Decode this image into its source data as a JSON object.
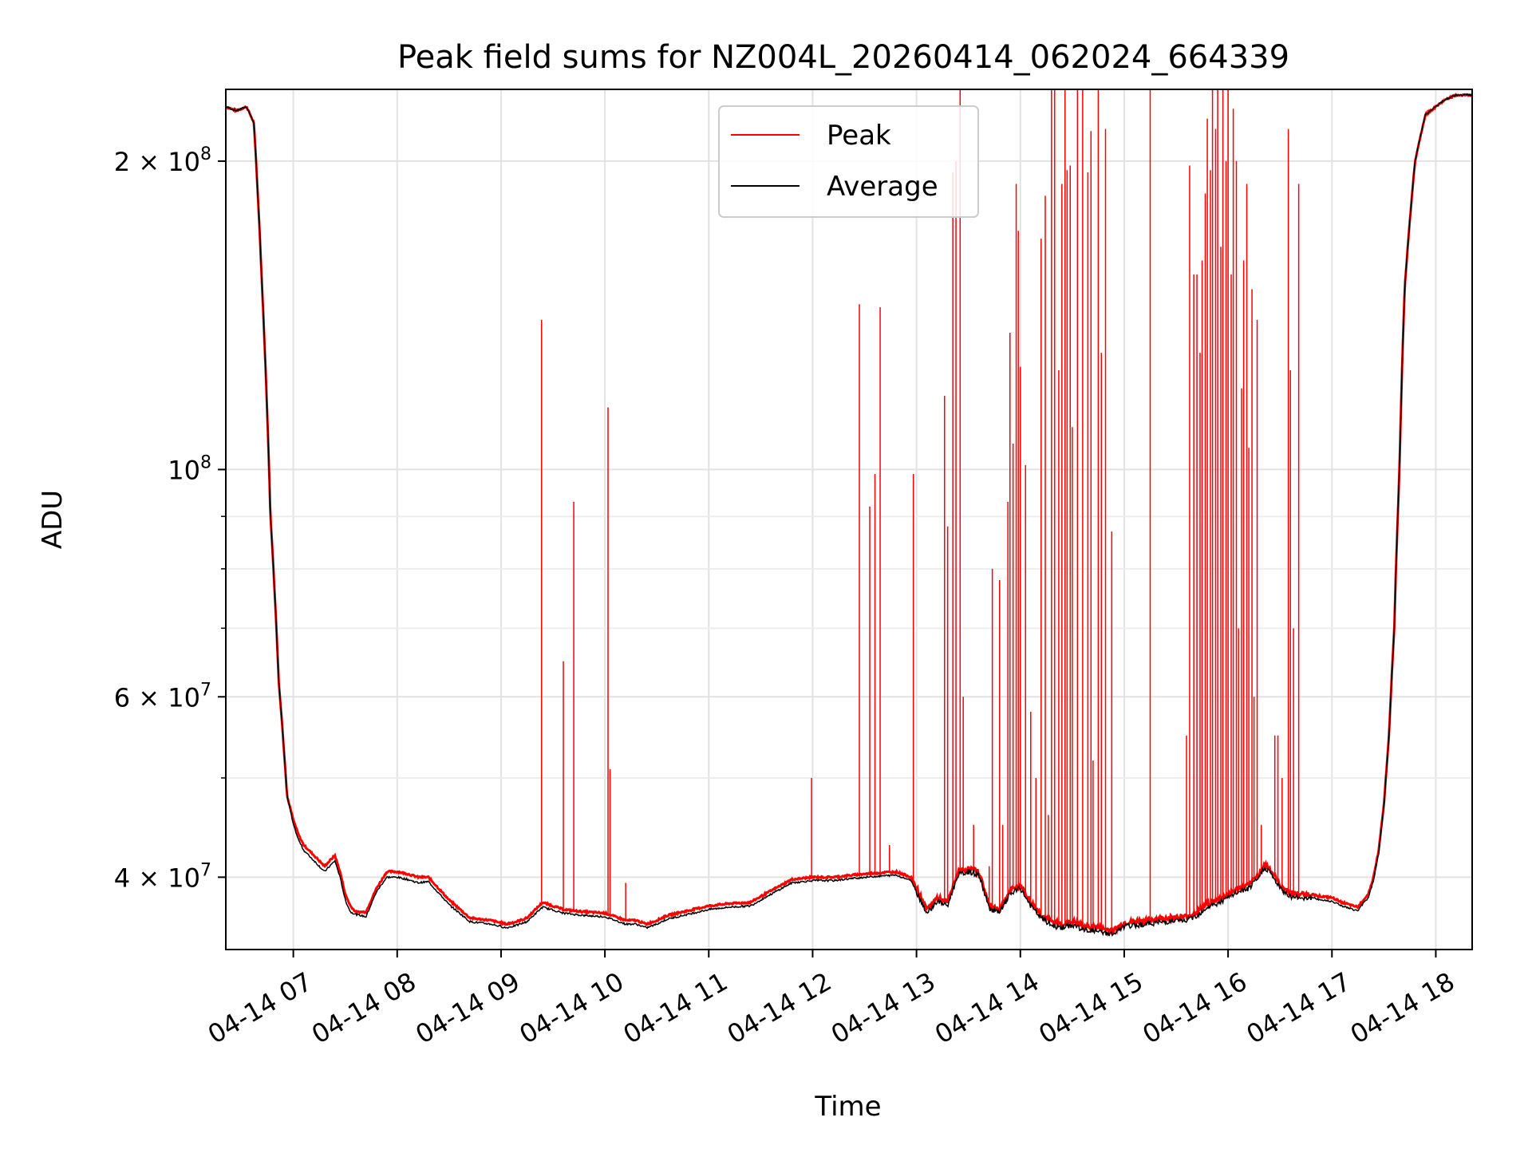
{
  "chart_data": {
    "type": "line",
    "title": "Peak field sums for NZ004L_20260414_062024_664339",
    "xlabel": "Time",
    "ylabel": "ADU",
    "yscale": "log",
    "xlim": [
      6.35,
      18.35
    ],
    "ylim": [
      34000000,
      235000000
    ],
    "grid": true,
    "legend_position": "upper-center",
    "x_ticks": [
      {
        "value": 7,
        "label": "04-14 07"
      },
      {
        "value": 8,
        "label": "04-14 08"
      },
      {
        "value": 9,
        "label": "04-14 09"
      },
      {
        "value": 10,
        "label": "04-14 10"
      },
      {
        "value": 11,
        "label": "04-14 11"
      },
      {
        "value": 12,
        "label": "04-14 12"
      },
      {
        "value": 13,
        "label": "04-14 13"
      },
      {
        "value": 14,
        "label": "04-14 14"
      },
      {
        "value": 15,
        "label": "04-14 15"
      },
      {
        "value": 16,
        "label": "04-14 16"
      },
      {
        "value": 17,
        "label": "04-14 17"
      },
      {
        "value": 18,
        "label": "04-14 18"
      }
    ],
    "y_ticks": [
      {
        "value": 40000000,
        "base": "4 × 10",
        "exp": "7"
      },
      {
        "value": 60000000,
        "base": "6 × 10",
        "exp": "7"
      },
      {
        "value": 100000000,
        "base": "10",
        "exp": "8"
      },
      {
        "value": 200000000,
        "base": "2 × 10",
        "exp": "8"
      }
    ],
    "y_minor_ticks": [
      50000000,
      70000000,
      80000000,
      90000000
    ],
    "series": [
      {
        "name": "Peak",
        "color": "#ff0000"
      },
      {
        "name": "Average",
        "color": "#000000"
      }
    ],
    "baseline": {
      "x": [
        6.35,
        6.45,
        6.55,
        6.62,
        6.7,
        6.78,
        6.86,
        6.94,
        7.0,
        7.05,
        7.1,
        7.2,
        7.3,
        7.4,
        7.45,
        7.5,
        7.55,
        7.6,
        7.7,
        7.8,
        7.9,
        8.0,
        8.1,
        8.2,
        8.3,
        8.5,
        8.7,
        8.9,
        9.05,
        9.15,
        9.25,
        9.4,
        9.6,
        9.8,
        10.0,
        10.2,
        10.3,
        10.4,
        10.5,
        10.6,
        10.8,
        11.0,
        11.2,
        11.4,
        11.6,
        11.8,
        12.0,
        12.2,
        12.5,
        12.8,
        12.95,
        13.0,
        13.1,
        13.2,
        13.3,
        13.4,
        13.5,
        13.6,
        13.7,
        13.8,
        13.9,
        14.0,
        14.1,
        14.2,
        14.3,
        14.4,
        14.5,
        14.55,
        14.6,
        14.7,
        14.8,
        14.9,
        15.0,
        15.2,
        15.4,
        15.6,
        15.7,
        15.8,
        15.9,
        16.0,
        16.1,
        16.2,
        16.3,
        16.35,
        16.4,
        16.5,
        16.6,
        16.7,
        16.8,
        16.9,
        17.0,
        17.1,
        17.2,
        17.25,
        17.3,
        17.35,
        17.4,
        17.45,
        17.5,
        17.55,
        17.6,
        17.65,
        17.7,
        17.8,
        17.9,
        18.0,
        18.05,
        18.1,
        18.2,
        18.35
      ],
      "peak": [
        226000000,
        224000000,
        226000000,
        218000000,
        150000000,
        90000000,
        62000000,
        48000000,
        45500000,
        44000000,
        43000000,
        42000000,
        41000000,
        42000000,
        40500000,
        38500000,
        37500000,
        37000000,
        37000000,
        39000000,
        40500000,
        40500000,
        40300000,
        40000000,
        40000000,
        38000000,
        36500000,
        36300000,
        36000000,
        36200000,
        36500000,
        37800000,
        37200000,
        37000000,
        36900000,
        36300000,
        36300000,
        36000000,
        36300000,
        36700000,
        37100000,
        37500000,
        37700000,
        37800000,
        38800000,
        39800000,
        40000000,
        40000000,
        40300000,
        40500000,
        40000000,
        39000000,
        37200000,
        38200000,
        37800000,
        40500000,
        40800000,
        40500000,
        37600000,
        37200000,
        38800000,
        39300000,
        37800000,
        36800000,
        36200000,
        36000000,
        36200000,
        36100000,
        35800000,
        35800000,
        35600000,
        35500000,
        36100000,
        36300000,
        36500000,
        36600000,
        37000000,
        37700000,
        38000000,
        38500000,
        39000000,
        39300000,
        40300000,
        41200000,
        40800000,
        39300000,
        38600000,
        38500000,
        38500000,
        38300000,
        38200000,
        37800000,
        37500000,
        37400000,
        38000000,
        38500000,
        40000000,
        42500000,
        47000000,
        55000000,
        70000000,
        100000000,
        150000000,
        200000000,
        222000000,
        226000000,
        228000000,
        230000000,
        232000000,
        232000000
      ],
      "average": [
        226000000,
        224000000,
        226000000,
        218000000,
        150000000,
        90000000,
        62000000,
        48000000,
        45000000,
        43500000,
        42500000,
        41500000,
        40500000,
        41500000,
        40000000,
        38000000,
        37000000,
        36800000,
        36600000,
        38700000,
        40000000,
        40000000,
        39800000,
        39500000,
        39600000,
        37600000,
        36200000,
        36000000,
        35700000,
        35900000,
        36200000,
        37400000,
        36900000,
        36700000,
        36600000,
        36000000,
        36000000,
        35700000,
        36000000,
        36400000,
        36800000,
        37200000,
        37400000,
        37500000,
        38500000,
        39500000,
        39700000,
        39700000,
        40000000,
        40200000,
        39700000,
        38700000,
        36900000,
        37900000,
        37500000,
        40200000,
        40500000,
        40200000,
        37300000,
        36900000,
        38500000,
        39000000,
        37500000,
        36500000,
        35900000,
        35700000,
        35900000,
        35800000,
        35500000,
        35500000,
        35300000,
        35200000,
        35800000,
        36000000,
        36200000,
        36300000,
        36700000,
        37400000,
        37700000,
        38200000,
        38700000,
        39000000,
        40000000,
        40900000,
        40500000,
        39000000,
        38300000,
        38200000,
        38200000,
        38000000,
        37900000,
        37500000,
        37200000,
        37100000,
        37700000,
        38200000,
        39700000,
        42200000,
        46800000,
        55000000,
        70000000,
        100000000,
        150000000,
        200000000,
        222000000,
        226000000,
        228000000,
        230000000,
        232000000,
        232000000
      ]
    },
    "peak_spikes": [
      [
        9.39,
        140000000
      ],
      [
        9.6,
        65000000
      ],
      [
        9.7,
        93000000
      ],
      [
        10.03,
        115000000
      ],
      [
        10.05,
        51000000
      ],
      [
        10.2,
        39500000
      ],
      [
        11.99,
        50000000
      ],
      [
        12.45,
        145000000
      ],
      [
        12.55,
        92000000
      ],
      [
        12.6,
        99000000
      ],
      [
        12.65,
        144000000
      ],
      [
        12.74,
        43000000
      ],
      [
        12.97,
        99000000
      ],
      [
        13.27,
        118000000
      ],
      [
        13.3,
        88000000
      ],
      [
        13.35,
        195000000
      ],
      [
        13.38,
        200000000
      ],
      [
        13.42,
        236000000
      ],
      [
        13.45,
        60000000
      ],
      [
        13.55,
        45000000
      ],
      [
        13.7,
        41000000
      ],
      [
        13.73,
        80000000
      ],
      [
        13.8,
        78000000
      ],
      [
        13.83,
        45000000
      ],
      [
        13.88,
        93000000
      ],
      [
        13.9,
        136000000
      ],
      [
        13.93,
        106000000
      ],
      [
        13.96,
        190000000
      ],
      [
        13.98,
        171000000
      ],
      [
        14.0,
        126000000
      ],
      [
        14.05,
        101000000
      ],
      [
        14.1,
        58000000
      ],
      [
        14.15,
        50000000
      ],
      [
        14.2,
        168000000
      ],
      [
        14.24,
        185000000
      ],
      [
        14.27,
        46000000
      ],
      [
        14.3,
        236000000
      ],
      [
        14.33,
        236000000
      ],
      [
        14.37,
        125000000
      ],
      [
        14.4,
        190000000
      ],
      [
        14.43,
        236000000
      ],
      [
        14.45,
        196000000
      ],
      [
        14.48,
        198000000
      ],
      [
        14.5,
        110000000
      ],
      [
        14.55,
        236000000
      ],
      [
        14.6,
        236000000
      ],
      [
        14.65,
        195000000
      ],
      [
        14.68,
        214000000
      ],
      [
        14.7,
        52000000
      ],
      [
        14.75,
        236000000
      ],
      [
        14.78,
        130000000
      ],
      [
        14.82,
        215000000
      ],
      [
        14.88,
        87000000
      ],
      [
        15.25,
        236000000
      ],
      [
        15.6,
        55000000
      ],
      [
        15.63,
        198000000
      ],
      [
        15.67,
        155000000
      ],
      [
        15.7,
        155000000
      ],
      [
        15.73,
        130000000
      ],
      [
        15.75,
        160000000
      ],
      [
        15.78,
        186000000
      ],
      [
        15.8,
        220000000
      ],
      [
        15.83,
        196000000
      ],
      [
        15.85,
        236000000
      ],
      [
        15.88,
        215000000
      ],
      [
        15.9,
        236000000
      ],
      [
        15.93,
        165000000
      ],
      [
        15.95,
        236000000
      ],
      [
        15.98,
        200000000
      ],
      [
        16.0,
        236000000
      ],
      [
        16.03,
        155000000
      ],
      [
        16.05,
        225000000
      ],
      [
        16.08,
        200000000
      ],
      [
        16.1,
        70000000
      ],
      [
        16.13,
        120000000
      ],
      [
        16.15,
        160000000
      ],
      [
        16.18,
        190000000
      ],
      [
        16.2,
        105000000
      ],
      [
        16.23,
        150000000
      ],
      [
        16.25,
        60000000
      ],
      [
        16.28,
        140000000
      ],
      [
        16.32,
        45000000
      ],
      [
        16.45,
        55000000
      ],
      [
        16.48,
        55000000
      ],
      [
        16.52,
        50000000
      ],
      [
        16.58,
        215000000
      ],
      [
        16.6,
        125000000
      ],
      [
        16.63,
        70000000
      ],
      [
        16.68,
        190000000
      ]
    ]
  }
}
